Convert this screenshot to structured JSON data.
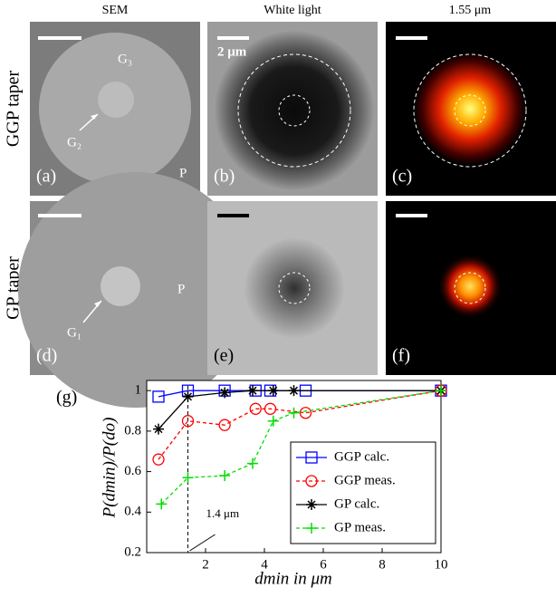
{
  "column_titles": [
    "SEM",
    "White light",
    "1.55 μm"
  ],
  "row_labels": [
    "GGP taper",
    "GP taper"
  ],
  "panels": [
    {
      "label": "(a)",
      "annotations": [
        "G₃",
        "G₂",
        "P"
      ]
    },
    {
      "label": "(b)",
      "annotations": [
        "2 μm"
      ]
    },
    {
      "label": "(c)",
      "annotations": []
    },
    {
      "label": "(d)",
      "annotations": [
        "G₁",
        "P"
      ]
    },
    {
      "label": "(e)",
      "annotations": []
    },
    {
      "label": "(f)",
      "annotations": []
    }
  ],
  "chart_data": {
    "type": "line",
    "panel_label": "(g)",
    "xlabel": "dmin in μm",
    "ylabel": "P(dmin)/P(do)",
    "annotation": "1.4 μm",
    "annotation_x": 1.4,
    "xlim": [
      0,
      10
    ],
    "xticks": [
      2,
      4,
      6,
      8,
      10
    ],
    "ylim": [
      0.2,
      1.05
    ],
    "yticks": [
      {
        "value": 0.2,
        "label": "0.2"
      },
      {
        "value": 0.4,
        "label": "0.4"
      },
      {
        "value": 0.6,
        "label": "0.6"
      },
      {
        "value": 0.8,
        "label": "0.8"
      },
      1
    ],
    "legend": "right",
    "series": [
      {
        "name": "GGP calc.",
        "color": "#0000ff",
        "marker": "square",
        "dash": false,
        "x": [
          0.4,
          1.4,
          2.65,
          3.7,
          4.2,
          5.4,
          10
        ],
        "values": [
          0.97,
          1.0,
          1.0,
          1.0,
          1.0,
          1.0,
          1.0
        ]
      },
      {
        "name": "GGP meas.",
        "color": "#ff0000",
        "marker": "circle",
        "dash": true,
        "x": [
          0.4,
          1.4,
          2.65,
          3.7,
          4.2,
          5.4,
          10
        ],
        "values": [
          0.66,
          0.85,
          0.83,
          0.91,
          0.91,
          0.89,
          1.0
        ]
      },
      {
        "name": "GP calc.",
        "color": "#000000",
        "marker": "star",
        "dash": false,
        "x": [
          0.4,
          1.4,
          2.65,
          3.6,
          4.3,
          5.0,
          10
        ],
        "values": [
          0.81,
          0.97,
          0.99,
          1.0,
          1.0,
          1.0,
          1.0
        ]
      },
      {
        "name": "GP meas.",
        "color": "#00dd00",
        "marker": "plus",
        "dash": true,
        "x": [
          0.5,
          1.4,
          2.65,
          3.6,
          4.3,
          5.0,
          10
        ],
        "values": [
          0.44,
          0.57,
          0.58,
          0.64,
          0.85,
          0.89,
          1.0
        ]
      }
    ]
  }
}
